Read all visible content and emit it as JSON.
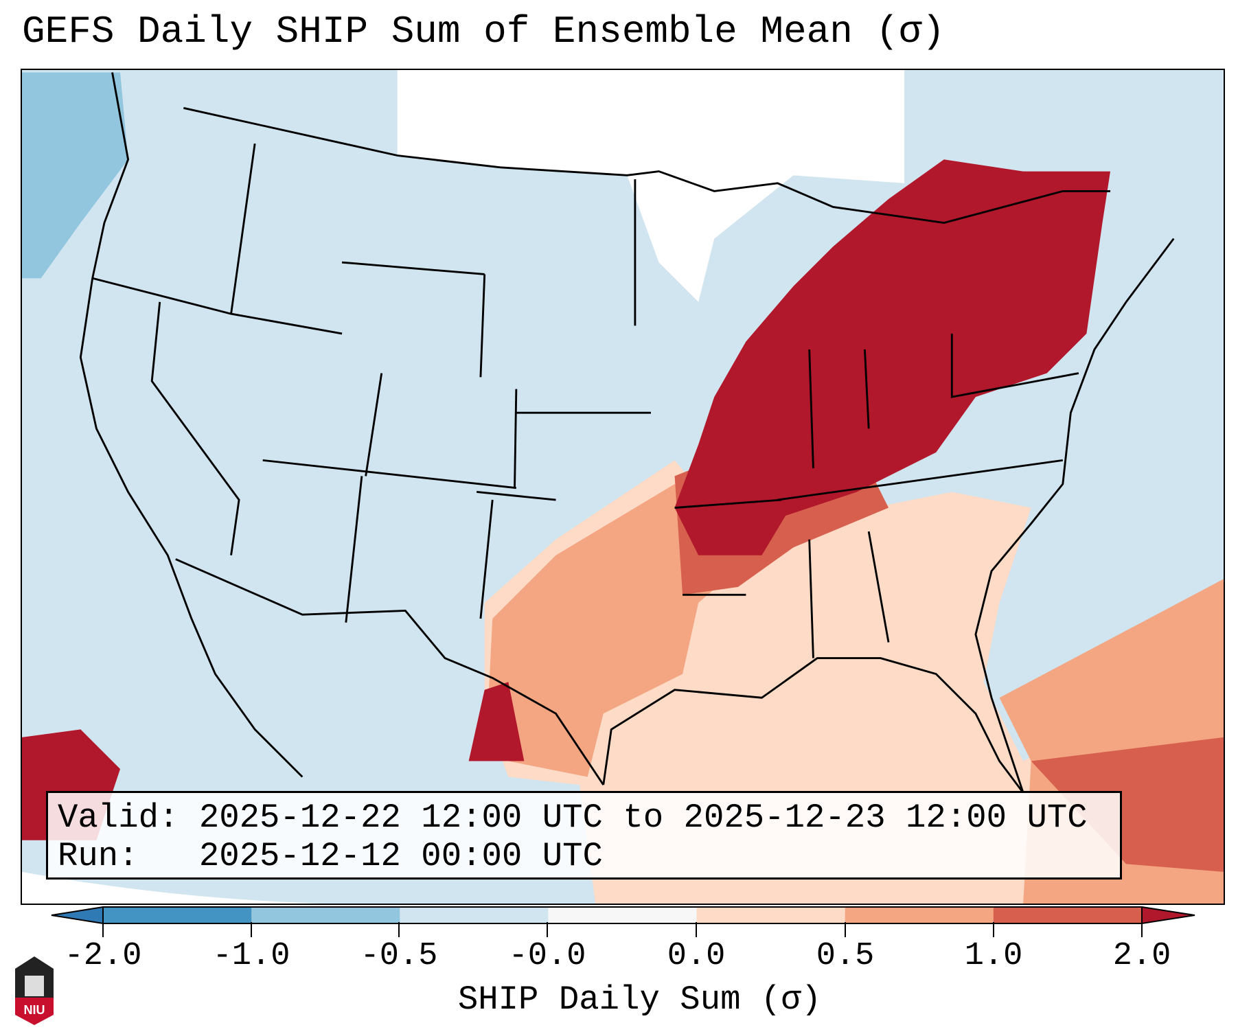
{
  "title": "GEFS Daily SHIP Sum of Ensemble Mean (σ)",
  "info": {
    "valid_label": "Valid:",
    "valid_value": "2025-12-22 12:00 UTC to 2025-12-23 12:00 UTC",
    "run_label": "Run:",
    "run_value": "2025-12-12 00:00 UTC"
  },
  "colorbar": {
    "label": "SHIP Daily Sum (σ)",
    "ticks": [
      "-2.0",
      "-1.0",
      "-0.5",
      "-0.0",
      "0.0",
      "0.5",
      "1.0",
      "2.0"
    ],
    "colors": [
      "#2f79b5",
      "#4393c3",
      "#92c5de",
      "#d1e5f0",
      "#f7f7f7",
      "#fddbc7",
      "#f4a582",
      "#d6604d",
      "#b2182b"
    ]
  },
  "logo": {
    "text": "NIU"
  },
  "colors": {
    "land_bg": "#d1e5f0",
    "high": "#b2182b",
    "mid": "#d6604d",
    "low": "#f4a582",
    "lowest": "#fddbc7",
    "neutral": "#ffffff",
    "neg": "#92c5de"
  }
}
